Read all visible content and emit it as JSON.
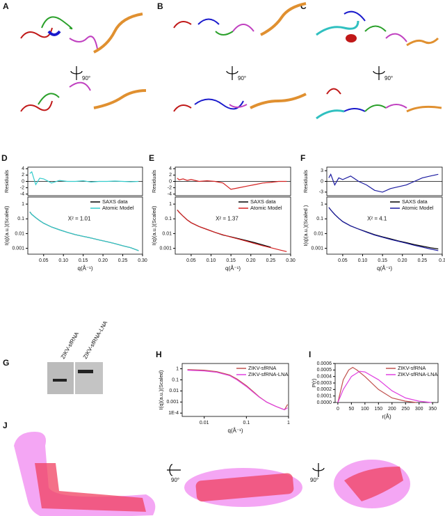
{
  "panels": {
    "A": "A",
    "B": "B",
    "C": "C",
    "G": "G",
    "J": "J"
  },
  "rotation_labels": [
    "90°",
    "90°",
    "90°",
    "90°",
    "90°"
  ],
  "gel_lanes": [
    "ZIKV-sfRNA",
    "ZIKV-sfRNA-LNA"
  ],
  "chart_data": [
    {
      "type": "line",
      "ylabel": "Residuals",
      "x": [
        0.015,
        0.02,
        0.03,
        0.04,
        0.05,
        0.07,
        0.09,
        0.11,
        0.13,
        0.15,
        0.17,
        0.19,
        0.21,
        0.23,
        0.25,
        0.27,
        0.29
      ],
      "xlim": [
        0.01,
        0.3
      ],
      "ylim": [
        -4.5,
        4.5
      ],
      "yticks": [
        4,
        2,
        0,
        -2,
        -4
      ],
      "series": [
        {
          "color": "#33cccc",
          "values": [
            2.5,
            3,
            -1,
            1,
            0.8,
            -0.5,
            0.3,
            0,
            0,
            0.2,
            -0.2,
            0,
            0,
            0.1,
            0,
            -0.1,
            0
          ]
        }
      ]
    },
    {
      "type": "line",
      "panel": "D",
      "xlabel": "q(Å⁻¹)",
      "ylabel": "I(q)(a.u.)(Scaled)",
      "log_y": true,
      "legend": "upper right",
      "annotation": "X² = 1.01",
      "x": [
        0.015,
        0.02,
        0.03,
        0.04,
        0.05,
        0.07,
        0.09,
        0.11,
        0.13,
        0.15,
        0.17,
        0.19,
        0.21,
        0.23,
        0.25,
        0.27,
        0.29
      ],
      "xlim": [
        0.01,
        0.3
      ],
      "xticks": [
        0.05,
        {
          "value": 0.1,
          "label": "0.10"
        },
        0.15,
        {
          "value": 0.2,
          "label": "0.20"
        },
        0.25,
        {
          "value": 0.3,
          "label": "0.30"
        }
      ],
      "ylim": [
        0.0004,
        3
      ],
      "yticks": [
        1,
        0.1,
        0.01,
        0.001
      ],
      "series": [
        {
          "name": "SAXS data",
          "color": "#000000",
          "values": [
            0.3,
            0.2,
            0.12,
            0.075,
            0.05,
            0.028,
            0.018,
            0.012,
            0.0085,
            0.0065,
            0.005,
            0.0037,
            0.0028,
            0.0021,
            0.0015,
            0.0011,
            0.0007
          ]
        },
        {
          "name": "Atomic Model",
          "color": "#33cccc",
          "values": [
            0.29,
            0.2,
            0.12,
            0.076,
            0.05,
            0.028,
            0.018,
            0.012,
            0.0086,
            0.0065,
            0.005,
            0.0037,
            0.0028,
            0.0021,
            0.0015,
            0.0011,
            0.0007
          ]
        }
      ]
    },
    {
      "type": "line",
      "ylabel": "Residuals",
      "x": [
        0.015,
        0.02,
        0.03,
        0.04,
        0.05,
        0.07,
        0.09,
        0.11,
        0.13,
        0.15,
        0.17,
        0.19,
        0.21,
        0.23,
        0.25,
        0.27,
        0.29
      ],
      "xlim": [
        0.01,
        0.3
      ],
      "ylim": [
        -4.5,
        4.5
      ],
      "yticks": [
        4,
        2,
        0,
        -2,
        -4
      ],
      "series": [
        {
          "color": "#d42020",
          "values": [
            1,
            0.5,
            0.8,
            0.3,
            0.6,
            0,
            0.2,
            0,
            -0.5,
            -2.5,
            -2,
            -1.5,
            -1,
            -0.5,
            -0.3,
            0,
            0
          ]
        }
      ]
    },
    {
      "type": "line",
      "panel": "E",
      "xlabel": "q(Å⁻¹)",
      "ylabel": "I(q)(a.u.)(Scaled)",
      "log_y": true,
      "legend": "upper right",
      "annotation": "X² = 1.37",
      "x": [
        0.015,
        0.02,
        0.03,
        0.04,
        0.05,
        0.07,
        0.09,
        0.11,
        0.13,
        0.15,
        0.17,
        0.19,
        0.21,
        0.23,
        0.25,
        0.27,
        0.29
      ],
      "xlim": [
        0.01,
        0.3
      ],
      "xticks": [
        0.05,
        {
          "value": 0.1,
          "label": "0.10"
        },
        0.15,
        {
          "value": 0.2,
          "label": "0.20"
        },
        0.25,
        {
          "value": 0.3,
          "label": "0.30"
        }
      ],
      "ylim": [
        0.0004,
        3
      ],
      "yticks": [
        1,
        0.1,
        0.01,
        0.001
      ],
      "series": [
        {
          "name": "SAXS data",
          "color": "#000000",
          "values": [
            0.4,
            0.28,
            0.15,
            0.085,
            0.055,
            0.03,
            0.019,
            0.012,
            0.008,
            0.006,
            0.0045,
            0.0033,
            0.0024,
            0.0017,
            0.0012,
            null,
            null
          ]
        },
        {
          "name": "Atomic Model",
          "color": "#d42020",
          "values": [
            0.4,
            0.28,
            0.15,
            0.085,
            0.055,
            0.03,
            0.019,
            0.012,
            0.0082,
            0.0058,
            0.0042,
            0.003,
            0.0021,
            0.0015,
            0.0011,
            0.0008,
            0.0006
          ]
        }
      ]
    },
    {
      "type": "line",
      "ylabel": "Residuals",
      "x": [
        0.015,
        0.02,
        0.03,
        0.04,
        0.05,
        0.07,
        0.09,
        0.11,
        0.13,
        0.15,
        0.17,
        0.19,
        0.21,
        0.23,
        0.25,
        0.27,
        0.29
      ],
      "xlim": [
        0.01,
        0.3
      ],
      "ylim": [
        -4,
        4
      ],
      "yticks": [
        3,
        0,
        -3
      ],
      "series": [
        {
          "color": "#1a1aa0",
          "values": [
            1,
            2,
            -1,
            1,
            0.5,
            1.5,
            0,
            -1,
            -2.5,
            -3,
            -2,
            -1.5,
            -1,
            0,
            1,
            1.5,
            2
          ]
        }
      ]
    },
    {
      "type": "line",
      "panel": "F",
      "xlabel": "q(Å⁻¹)",
      "ylabel": "I(q)(a.u.)(Scaled )",
      "log_y": true,
      "legend": "upper right",
      "annotation": "X² = 4.1",
      "x": [
        0.015,
        0.02,
        0.03,
        0.04,
        0.05,
        0.07,
        0.09,
        0.11,
        0.13,
        0.15,
        0.17,
        0.19,
        0.21,
        0.23,
        0.25,
        0.27,
        0.29
      ],
      "xlim": [
        0.01,
        0.3
      ],
      "xticks": [
        0.05,
        {
          "value": 0.1,
          "label": "0.10"
        },
        0.15,
        {
          "value": 0.2,
          "label": "0.20"
        },
        0.25,
        {
          "value": 0.3,
          "label": "0.3"
        }
      ],
      "ylim": [
        0.0004,
        3
      ],
      "yticks": [
        1,
        0.1,
        0.01,
        0.001
      ],
      "series": [
        {
          "name": "SAXS data",
          "color": "#000000",
          "values": [
            0.6,
            0.4,
            0.2,
            0.11,
            0.065,
            0.033,
            0.02,
            0.013,
            0.0085,
            0.006,
            0.0044,
            0.0032,
            0.0024,
            0.0018,
            0.0014,
            0.0011,
            0.0009
          ]
        },
        {
          "name": "Atomic Model",
          "color": "#1a1aa0",
          "values": [
            0.6,
            0.4,
            0.2,
            0.11,
            0.065,
            0.033,
            0.02,
            0.0125,
            0.008,
            0.0056,
            0.004,
            0.003,
            0.0022,
            0.0016,
            0.0012,
            0.0009,
            0.0007
          ]
        }
      ]
    },
    {
      "type": "line",
      "panel": "H",
      "xlabel": "q(Å⁻¹)",
      "ylabel": "I(q)(a.u.)(Scaled)",
      "log_x": true,
      "log_y": true,
      "legend": "upper right",
      "x": [
        0.004,
        0.01,
        0.02,
        0.04,
        0.06,
        0.1,
        0.15,
        0.2,
        0.3,
        0.5,
        0.8,
        0.95
      ],
      "xlim": [
        0.003,
        1
      ],
      "xticks": [
        0.01,
        0.1,
        1
      ],
      "ylim": [
        5e-05,
        3
      ],
      "yticks": [
        1,
        0.1,
        0.01,
        0.001,
        {
          "value": 0.0001,
          "label": "1E-4"
        }
      ],
      "series": [
        {
          "name": "ZIKV-sfRNA",
          "color": "#c0504d",
          "values": [
            0.85,
            0.75,
            0.55,
            0.28,
            0.12,
            0.03,
            0.008,
            0.003,
            0.001,
            0.0004,
            0.0002,
            0.0006
          ]
        },
        {
          "name": "ZIKV-sfRNA-LNA",
          "color": "#e040e0",
          "values": [
            0.75,
            0.65,
            0.48,
            0.24,
            0.1,
            0.025,
            0.007,
            0.0028,
            0.001,
            0.0004,
            0.0002,
            0.0003
          ]
        }
      ]
    },
    {
      "type": "line",
      "panel": "I",
      "xlabel": "r(Å)",
      "ylabel": "P(r)",
      "legend": "upper right",
      "xlim": [
        -10,
        370
      ],
      "xticks": [
        0,
        50,
        100,
        150,
        200,
        250,
        300,
        350
      ],
      "ylim": [
        0,
        0.0006
      ],
      "yticks": [
        {
          "value": 0,
          "label": "0.0000"
        },
        {
          "value": 0.0001,
          "label": "0.0001"
        },
        {
          "value": 0.0002,
          "label": "0.0002"
        },
        {
          "value": 0.0003,
          "label": "0.0003"
        },
        {
          "value": 0.0004,
          "label": "0.0004"
        },
        {
          "value": 0.0005,
          "label": "0.0005"
        },
        {
          "value": 0.0006,
          "label": "0.0006"
        }
      ],
      "series": [
        {
          "name": "ZIKV-sfRNA",
          "color": "#c0504d",
          "x": [
            0,
            20,
            40,
            55,
            70,
            100,
            150,
            200,
            250,
            290
          ],
          "values": [
            0,
            0.00035,
            0.0005,
            0.00054,
            0.0005,
            0.0004,
            0.0002,
            7e-05,
            2e-05,
            0
          ]
        },
        {
          "name": "ZIKV-sfRNA-LNA",
          "color": "#e040e0",
          "x": [
            0,
            20,
            50,
            80,
            100,
            150,
            200,
            250,
            300,
            345
          ],
          "values": [
            0,
            0.0002,
            0.0004,
            0.00048,
            0.00047,
            0.00035,
            0.00018,
            7e-05,
            2e-05,
            0
          ]
        }
      ]
    }
  ]
}
